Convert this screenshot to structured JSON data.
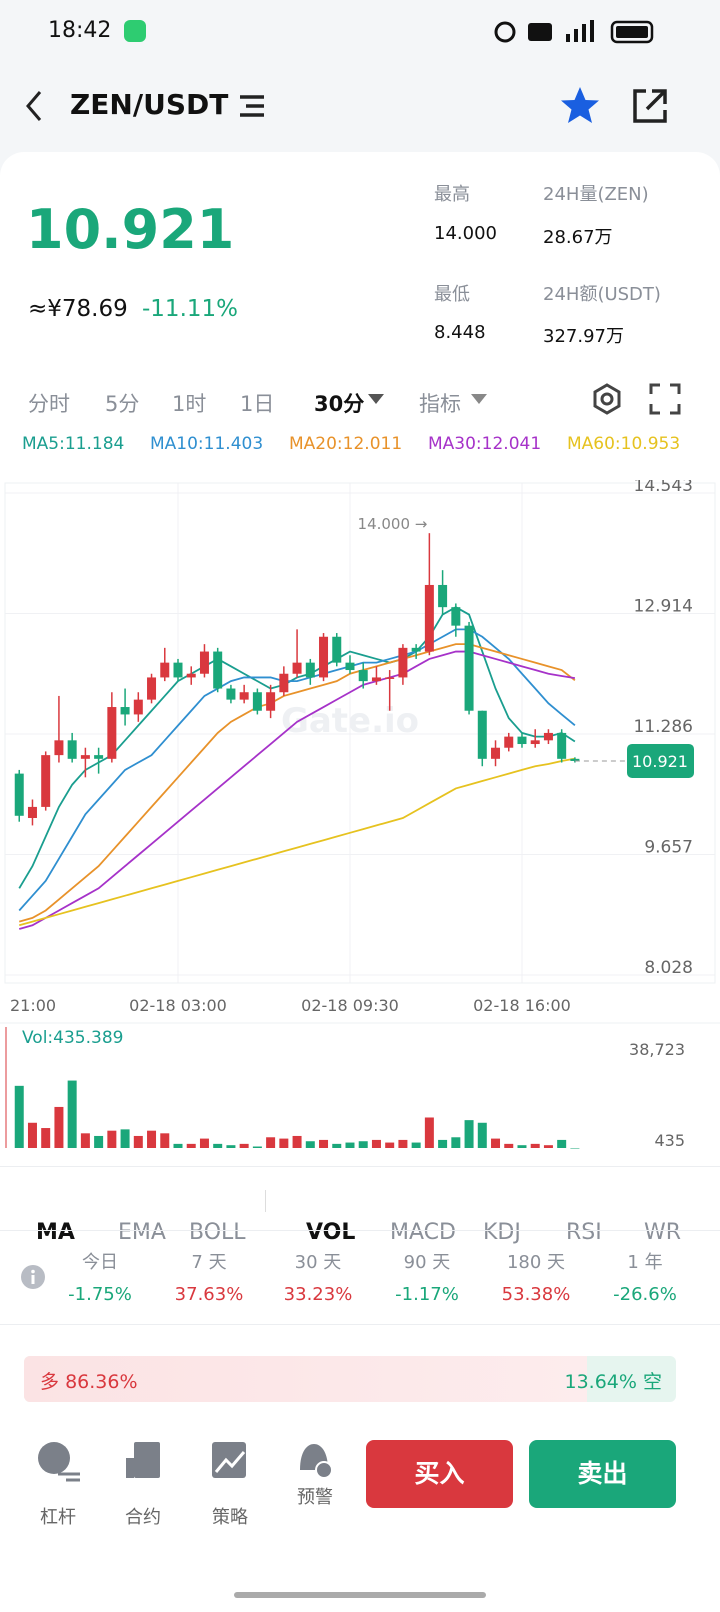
{
  "status_bar": {
    "time": "18:42"
  },
  "header": {
    "pair": "ZEN/USDT"
  },
  "ticker": {
    "price": "10.921",
    "cny": "≈¥78.69",
    "change": "-11.11%",
    "stats": [
      {
        "label": "最高",
        "value": "14.000"
      },
      {
        "label": "24H量(ZEN)",
        "value": "28.67万"
      },
      {
        "label": "最低",
        "value": "8.448"
      },
      {
        "label": "24H额(USDT)",
        "value": "327.97万"
      }
    ]
  },
  "intervals": [
    "分时",
    "5分",
    "1时",
    "1日",
    "30分",
    "指标"
  ],
  "chart_data": {
    "type": "candlestick",
    "up_color": "#d9383e",
    "down_color": "#1aa77a",
    "categories": [
      "21:00",
      null,
      null,
      null,
      null,
      null,
      null,
      null,
      null,
      null,
      null,
      null,
      "02-18 03:00",
      null,
      null,
      null,
      null,
      null,
      null,
      null,
      null,
      null,
      null,
      null,
      null,
      "02-18 09:30",
      null,
      null,
      null,
      null,
      null,
      null,
      null,
      null,
      null,
      null,
      null,
      null,
      "02-18 16:00",
      null,
      null,
      null,
      null
    ],
    "open": [
      10.75,
      10.15,
      10.3,
      11.0,
      11.2,
      10.95,
      11.0,
      10.95,
      11.65,
      11.55,
      11.75,
      12.05,
      12.25,
      12.05,
      12.1,
      12.4,
      11.9,
      11.75,
      11.85,
      11.6,
      11.85,
      12.1,
      12.25,
      12.05,
      12.6,
      12.25,
      12.15,
      12.0,
      12.05,
      12.05,
      12.45,
      12.4,
      13.3,
      13.0,
      12.75,
      11.6,
      10.95,
      11.1,
      11.25,
      11.15,
      11.2,
      11.3,
      10.95
    ],
    "close": [
      10.18,
      10.3,
      11.0,
      11.2,
      10.95,
      11.0,
      10.95,
      11.65,
      11.55,
      11.75,
      12.05,
      12.25,
      12.05,
      12.1,
      12.4,
      11.9,
      11.75,
      11.85,
      11.6,
      11.85,
      12.1,
      12.25,
      12.05,
      12.6,
      12.25,
      12.15,
      12.0,
      12.05,
      12.05,
      12.45,
      12.4,
      13.3,
      13.0,
      12.75,
      11.6,
      10.95,
      11.1,
      11.25,
      11.15,
      11.2,
      11.3,
      10.95,
      10.921
    ],
    "high": [
      10.8,
      10.4,
      11.05,
      11.8,
      11.3,
      11.1,
      11.1,
      11.85,
      11.9,
      11.85,
      12.1,
      12.45,
      12.3,
      12.2,
      12.5,
      12.45,
      11.95,
      11.95,
      11.9,
      11.95,
      12.2,
      12.7,
      12.3,
      12.65,
      12.65,
      12.35,
      12.25,
      12.2,
      12.15,
      12.5,
      12.5,
      14.0,
      13.5,
      13.05,
      12.8,
      11.6,
      11.2,
      11.3,
      11.3,
      11.35,
      11.35,
      11.35,
      10.97
    ],
    "low": [
      10.1,
      10.05,
      10.25,
      10.9,
      10.9,
      10.7,
      10.75,
      10.9,
      11.4,
      11.45,
      11.7,
      12.0,
      12.0,
      11.95,
      12.05,
      11.85,
      11.7,
      11.7,
      11.55,
      11.5,
      11.8,
      12.05,
      11.95,
      12.0,
      12.2,
      12.1,
      11.9,
      11.95,
      11.6,
      11.95,
      12.3,
      12.35,
      12.9,
      12.6,
      11.55,
      10.85,
      10.85,
      11.05,
      11.1,
      11.1,
      11.15,
      10.9,
      10.9
    ],
    "ma_lines": [
      {
        "name": "MA5:11.184",
        "color": "#1a9e8f",
        "values": [
          9.2,
          9.5,
          9.9,
          10.3,
          10.6,
          10.8,
          10.9,
          11.0,
          11.2,
          11.4,
          11.6,
          11.8,
          12.0,
          12.1,
          12.2,
          12.3,
          12.2,
          12.1,
          12.0,
          11.9,
          11.95,
          12.05,
          12.1,
          12.2,
          12.3,
          12.4,
          12.35,
          12.3,
          12.25,
          12.3,
          12.4,
          12.6,
          12.9,
          13.0,
          12.9,
          12.4,
          11.9,
          11.5,
          11.3,
          11.25,
          11.25,
          11.3,
          11.184
        ]
      },
      {
        "name": "MA10:11.403",
        "color": "#2f8fd0",
        "values": [
          8.9,
          9.1,
          9.3,
          9.6,
          9.9,
          10.2,
          10.4,
          10.6,
          10.8,
          10.9,
          11.0,
          11.2,
          11.4,
          11.6,
          11.8,
          11.9,
          12.0,
          12.05,
          12.05,
          12.05,
          12.0,
          12.0,
          12.05,
          12.1,
          12.15,
          12.2,
          12.25,
          12.25,
          12.3,
          12.35,
          12.4,
          12.5,
          12.6,
          12.7,
          12.7,
          12.6,
          12.45,
          12.3,
          12.1,
          11.9,
          11.7,
          11.55,
          11.403
        ]
      },
      {
        "name": "MA20:12.011",
        "color": "#e8922a",
        "values": [
          8.75,
          8.8,
          8.9,
          9.05,
          9.2,
          9.35,
          9.5,
          9.7,
          9.9,
          10.1,
          10.3,
          10.5,
          10.7,
          10.9,
          11.1,
          11.3,
          11.45,
          11.55,
          11.65,
          11.7,
          11.8,
          11.85,
          11.9,
          11.95,
          12.0,
          12.1,
          12.15,
          12.2,
          12.25,
          12.3,
          12.35,
          12.4,
          12.45,
          12.5,
          12.5,
          12.45,
          12.4,
          12.35,
          12.3,
          12.25,
          12.2,
          12.15,
          12.011
        ]
      },
      {
        "name": "MA30:12.041",
        "color": "#a632c9",
        "values": [
          8.65,
          8.7,
          8.8,
          8.9,
          9.0,
          9.1,
          9.2,
          9.35,
          9.5,
          9.65,
          9.8,
          9.95,
          10.1,
          10.25,
          10.4,
          10.55,
          10.7,
          10.85,
          11.0,
          11.15,
          11.3,
          11.45,
          11.55,
          11.65,
          11.75,
          11.85,
          11.95,
          12.0,
          12.05,
          12.1,
          12.2,
          12.3,
          12.35,
          12.4,
          12.4,
          12.35,
          12.3,
          12.25,
          12.2,
          12.15,
          12.1,
          12.07,
          12.041
        ]
      },
      {
        "name": "MA60:10.953",
        "color": "#e6c21f",
        "values": [
          8.7,
          8.75,
          8.8,
          8.85,
          8.9,
          8.95,
          9.0,
          9.05,
          9.1,
          9.15,
          9.2,
          9.25,
          9.3,
          9.35,
          9.4,
          9.45,
          9.5,
          9.55,
          9.6,
          9.65,
          9.7,
          9.75,
          9.8,
          9.85,
          9.9,
          9.95,
          10.0,
          10.05,
          10.1,
          10.15,
          10.25,
          10.35,
          10.45,
          10.55,
          10.6,
          10.65,
          10.7,
          10.75,
          10.8,
          10.85,
          10.88,
          10.92,
          10.953
        ]
      }
    ],
    "ylim": [
      8.028,
      14.543
    ],
    "yticks": [
      14.543,
      12.914,
      11.286,
      9.657,
      8.028
    ],
    "last_price": 10.921,
    "max_label": "14.000 →",
    "watermark": "Gate.io",
    "volume": {
      "label": "Vol:435.389",
      "values": [
        24000,
        10000,
        8000,
        16000,
        26000,
        6000,
        5000,
        7000,
        7500,
        5000,
        7000,
        6000,
        2000,
        2000,
        4000,
        2000,
        1500,
        2000,
        1000,
        4500,
        4000,
        5000,
        3000,
        3500,
        2000,
        2500,
        3000,
        3500,
        2500,
        3500,
        2500,
        12000,
        3500,
        4500,
        11000,
        10000,
        4000,
        2000,
        1500,
        2000,
        1500,
        3500,
        435.389
      ],
      "ylim": [
        435,
        38723
      ],
      "yticks": [
        {
          "value": 38723,
          "label": "38,723"
        },
        435
      ]
    }
  },
  "indicators": [
    "MA",
    "EMA",
    "BOLL",
    "VOL",
    "MACD",
    "KDJ",
    "RSI",
    "WR"
  ],
  "performance": [
    {
      "period": "今日",
      "change": "-1.75%"
    },
    {
      "period": "7 天",
      "change": "37.63%"
    },
    {
      "period": "30 天",
      "change": "33.23%"
    },
    {
      "period": "90 天",
      "change": "-1.17%"
    },
    {
      "period": "180 天",
      "change": "53.38%"
    },
    {
      "period": "1 年",
      "change": "-26.6%"
    }
  ],
  "sentiment": {
    "long_label": "多",
    "long": 86.36,
    "long_text": "86.36%",
    "short_label": "空",
    "short": 13.64,
    "short_text": "13.64%"
  },
  "nav": [
    "杠杆",
    "合约",
    "策略",
    "预警"
  ],
  "buy": "买入",
  "sell": "卖出"
}
